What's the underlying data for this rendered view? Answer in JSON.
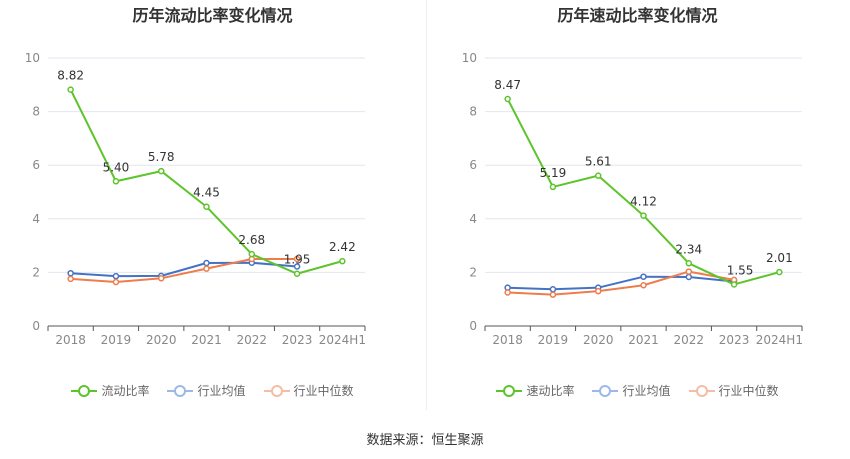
{
  "source": "数据来源：恒生聚源",
  "colors": {
    "main": "#5ec42c",
    "avg": "#4472c4",
    "median": "#ed7d4c",
    "grid": "#e3e6f0",
    "axis": "#555555"
  },
  "chart_data": [
    {
      "type": "line",
      "title": "历年流动比率变化情况",
      "categories": [
        "2018",
        "2019",
        "2020",
        "2021",
        "2022",
        "2023",
        "2024H1"
      ],
      "ylim": [
        0,
        10
      ],
      "yticks": [
        0,
        2,
        4,
        6,
        8,
        10
      ],
      "grid": true,
      "legend_position": "bottom",
      "series": [
        {
          "name": "流动比率",
          "values": [
            8.82,
            5.4,
            5.78,
            4.45,
            2.68,
            1.95,
            2.42
          ],
          "labels": [
            "8.82",
            "5.40",
            "5.78",
            "4.45",
            "2.68",
            "1.95",
            "2.42"
          ]
        },
        {
          "name": "行业均值",
          "values": [
            1.97,
            1.86,
            1.87,
            2.35,
            2.36,
            2.22,
            null
          ]
        },
        {
          "name": "行业中位数",
          "values": [
            1.76,
            1.64,
            1.78,
            2.14,
            2.5,
            2.5,
            null
          ]
        }
      ]
    },
    {
      "type": "line",
      "title": "历年速动比率变化情况",
      "categories": [
        "2018",
        "2019",
        "2020",
        "2021",
        "2022",
        "2023",
        "2024H1"
      ],
      "ylim": [
        0,
        10
      ],
      "yticks": [
        0,
        2,
        4,
        6,
        8,
        10
      ],
      "grid": true,
      "legend_position": "bottom",
      "series": [
        {
          "name": "速动比率",
          "values": [
            8.47,
            5.19,
            5.61,
            4.12,
            2.34,
            1.55,
            2.01
          ],
          "labels": [
            "8.47",
            "5.19",
            "5.61",
            "4.12",
            "2.34",
            "1.55",
            "2.01"
          ]
        },
        {
          "name": "行业均值",
          "values": [
            1.43,
            1.37,
            1.43,
            1.84,
            1.83,
            1.66,
            null
          ]
        },
        {
          "name": "行业中位数",
          "values": [
            1.25,
            1.17,
            1.3,
            1.52,
            2.03,
            1.72,
            null
          ]
        }
      ]
    }
  ]
}
